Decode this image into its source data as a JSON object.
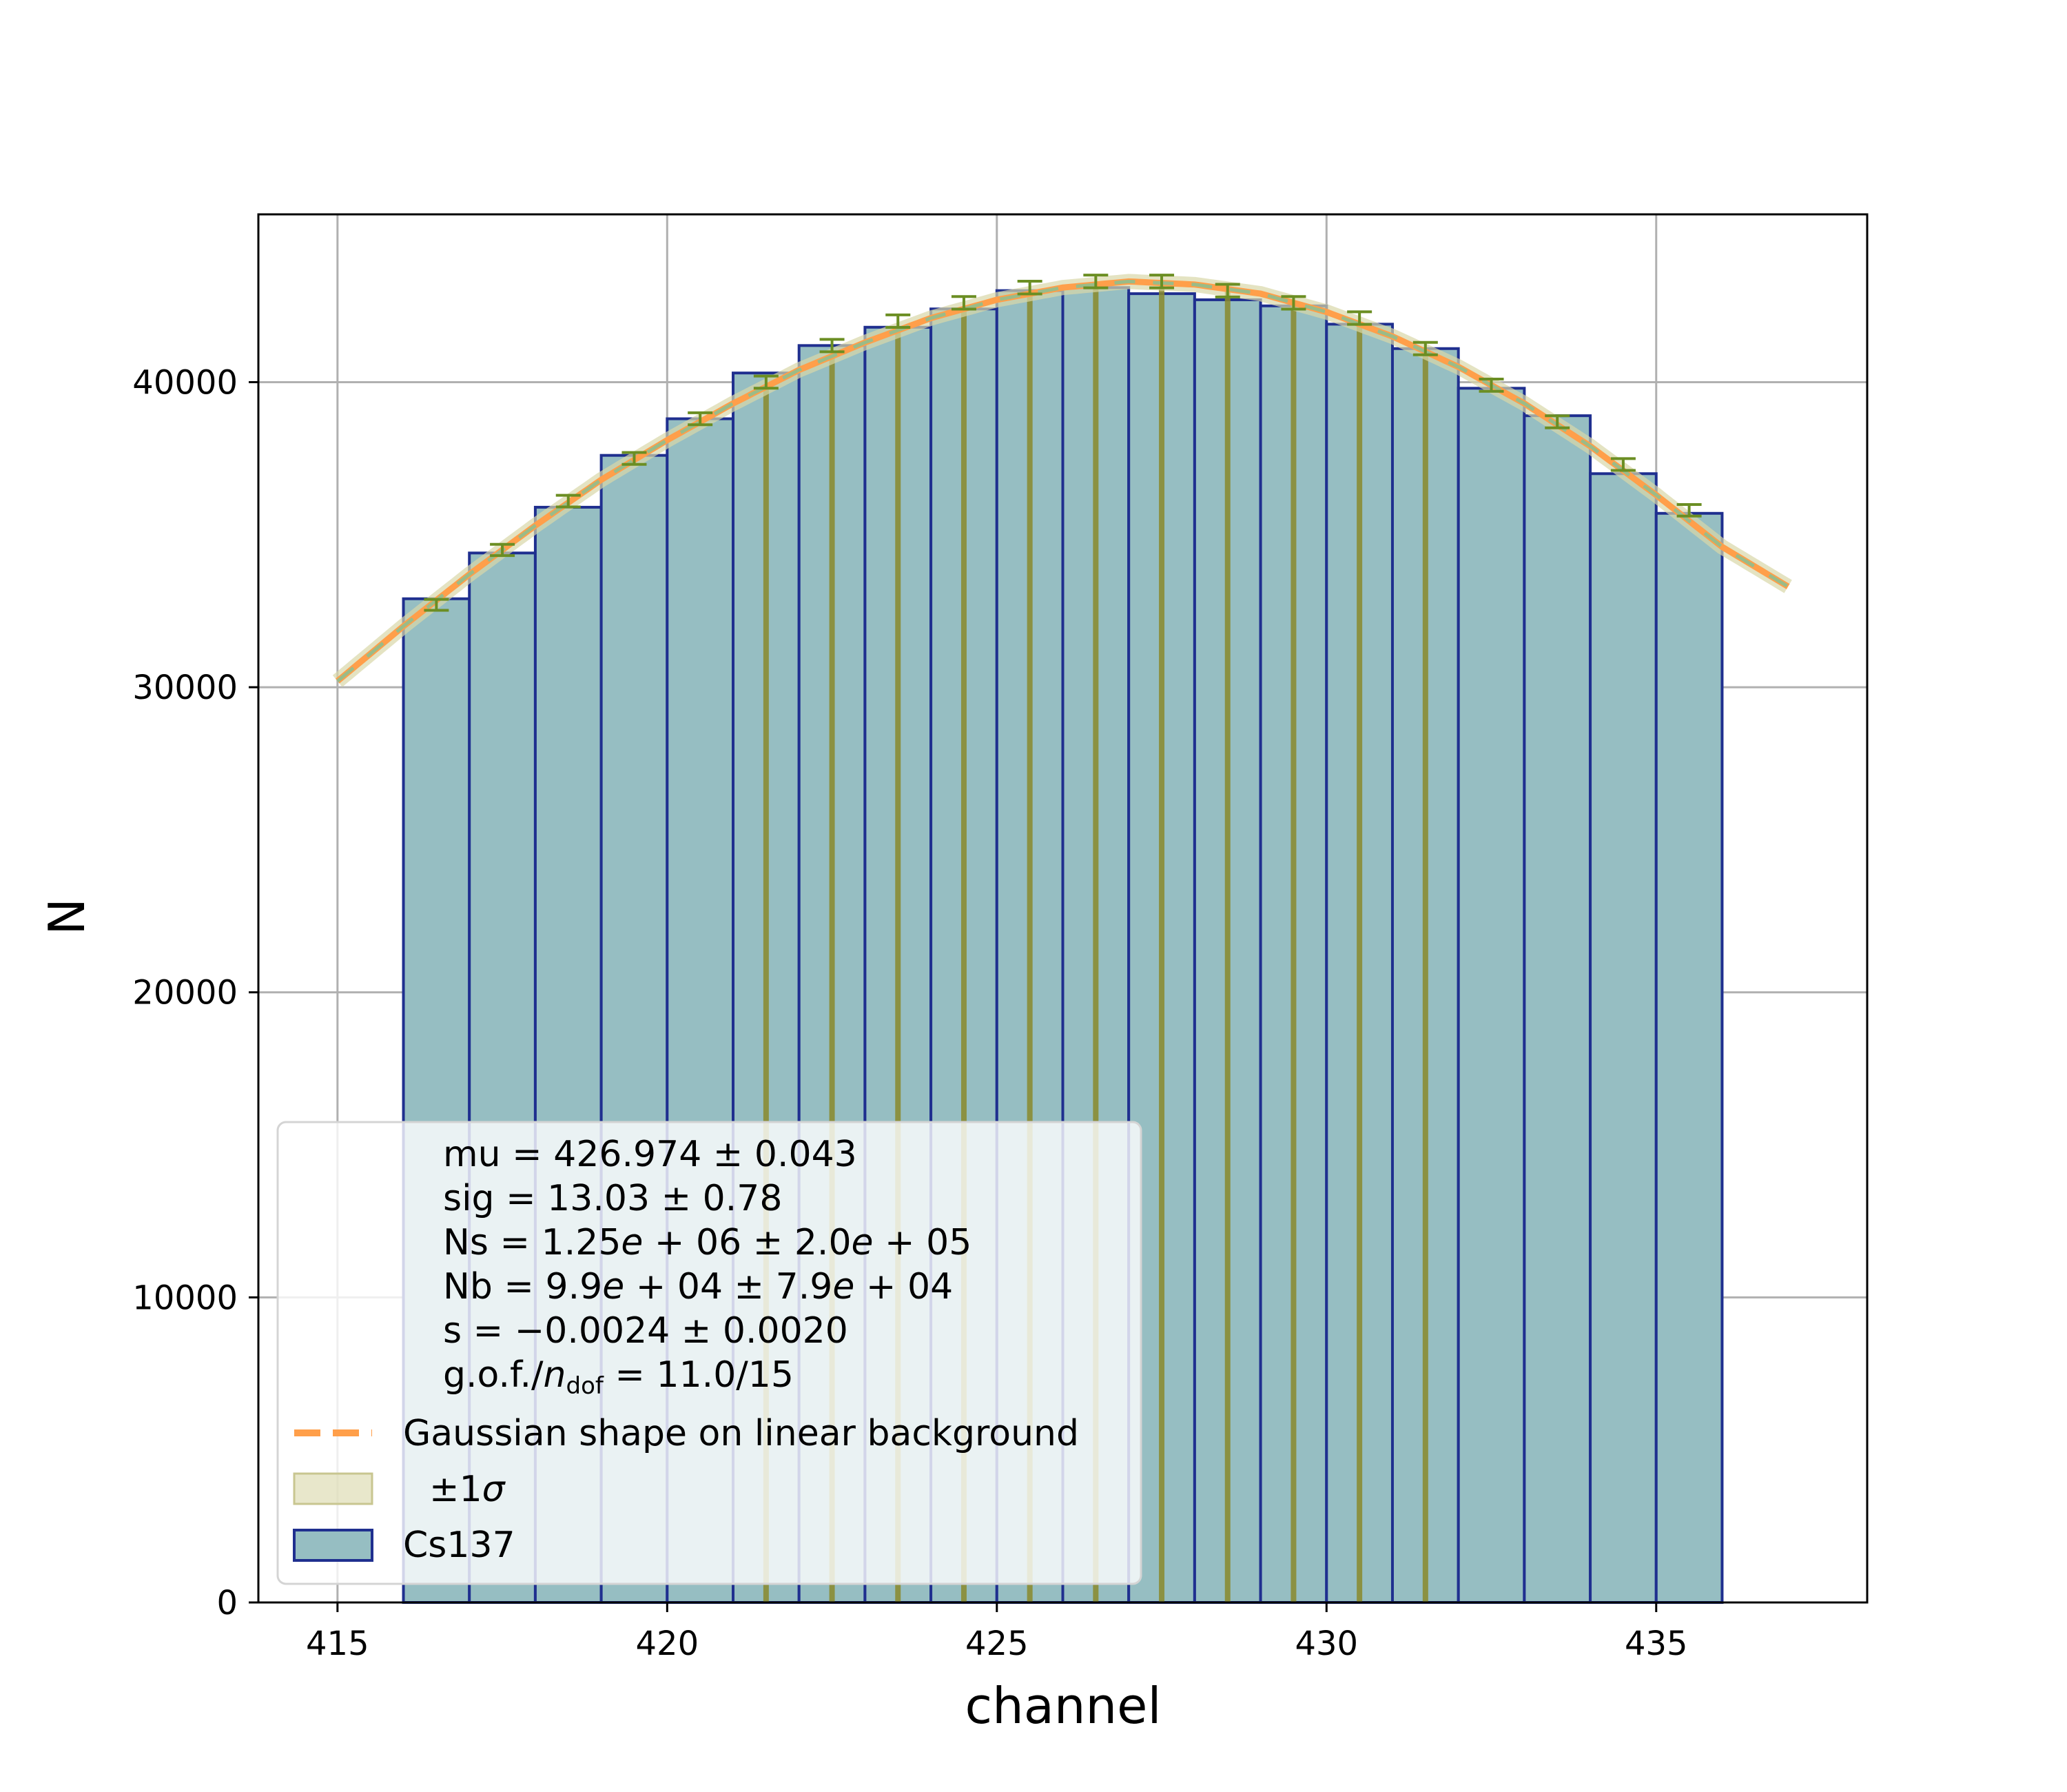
{
  "chart_data": {
    "type": "bar",
    "xlabel": "channel",
    "ylabel": "N",
    "xlim": [
      413.8,
      438.2
    ],
    "ylim": [
      0,
      45500
    ],
    "xticks": [
      415,
      420,
      425,
      430,
      435
    ],
    "yticks": [
      0,
      10000,
      20000,
      30000,
      40000
    ],
    "xtick_labels": [
      "415",
      "420",
      "425",
      "430",
      "435"
    ],
    "ytick_labels": [
      "0",
      "10000",
      "20000",
      "30000",
      "40000"
    ],
    "grid": true,
    "legend_position": "lower-left",
    "histogram": {
      "name": "Cs137",
      "bin_edges": [
        416,
        417,
        418,
        419,
        420,
        421,
        422,
        423,
        424,
        425,
        426,
        427,
        428,
        429,
        430,
        431,
        432,
        433,
        434,
        435,
        436
      ],
      "counts": [
        32900,
        34400,
        35900,
        37600,
        38800,
        40300,
        41200,
        41800,
        42400,
        43000,
        43100,
        42900,
        42700,
        42500,
        41900,
        41100,
        39800,
        38900,
        37000,
        35700
      ],
      "error_bar_x": [
        416.5,
        417.5,
        418.5,
        419.5,
        420.5,
        421.5,
        422.5,
        423.5,
        424.5,
        425.5,
        426.5,
        427.5,
        428.5,
        429.5,
        430.5,
        431.5,
        432.5,
        433.5,
        434.5,
        435.5
      ],
      "error_bar_y": [
        32700,
        34500,
        36100,
        37500,
        38800,
        40000,
        41200,
        42000,
        42600,
        43100,
        43300,
        43300,
        43000,
        42600,
        42100,
        41100,
        39900,
        38700,
        37300,
        35800
      ],
      "error_bar_err": [
        180,
        185,
        190,
        194,
        197,
        200,
        203,
        205,
        206,
        208,
        208,
        208,
        207,
        206,
        205,
        203,
        200,
        197,
        193,
        189
      ]
    },
    "fit": {
      "name": "Gaussian shape on linear background",
      "x_range": [
        415,
        437
      ],
      "curve_x": [
        415,
        416,
        417,
        418,
        419,
        420,
        421,
        422,
        423,
        424,
        425,
        426,
        427,
        428,
        429,
        430,
        431,
        432,
        433,
        434,
        435,
        436,
        437
      ],
      "curve_y": [
        30200,
        32000,
        33700,
        35300,
        36800,
        38100,
        39300,
        40400,
        41300,
        42100,
        42700,
        43100,
        43300,
        43200,
        42900,
        42300,
        41500,
        40500,
        39300,
        37900,
        36300,
        34600,
        33300
      ],
      "band_name": "±1σ",
      "verticals_x": [
        421.5,
        422.5,
        423.5,
        424.5,
        425.5,
        426.5,
        427.5,
        428.5,
        429.5,
        430.5,
        431.5
      ]
    },
    "legend": {
      "params": [
        {
          "pre": "mu = 426.974 ± 0.043"
        },
        {
          "pre": "sig = 13.03 ± 0.78"
        },
        {
          "pre": "Ns = 1.25",
          "it1": "e",
          "mid": " + 06 ± 2.0",
          "it2": "e",
          "post": " + 05"
        },
        {
          "pre": "Nb = 9.9",
          "it1": "e",
          "mid": " + 04 ± 7.9",
          "it2": "e",
          "post": " + 04"
        },
        {
          "pre": "s = −0.0024 ± 0.0020"
        },
        {
          "pre": "g.o.f./",
          "it1": "n",
          "sub": "dof",
          "post": " = 11.0/15"
        }
      ],
      "fit_label": "Gaussian shape on linear background",
      "band_label": "±1",
      "band_symbol": "σ",
      "data_label": "Cs137"
    },
    "colors": {
      "bar_fill": "#96bec2",
      "bar_edge": "#1f2f8f",
      "fit_line": "#ff9f4a",
      "fit_dash": "#8fbe8f",
      "band": "#d8d7a8",
      "verticals": "#8a8a2c",
      "error_bars": "#6b8e23",
      "grid": "#b0b0b0"
    }
  }
}
